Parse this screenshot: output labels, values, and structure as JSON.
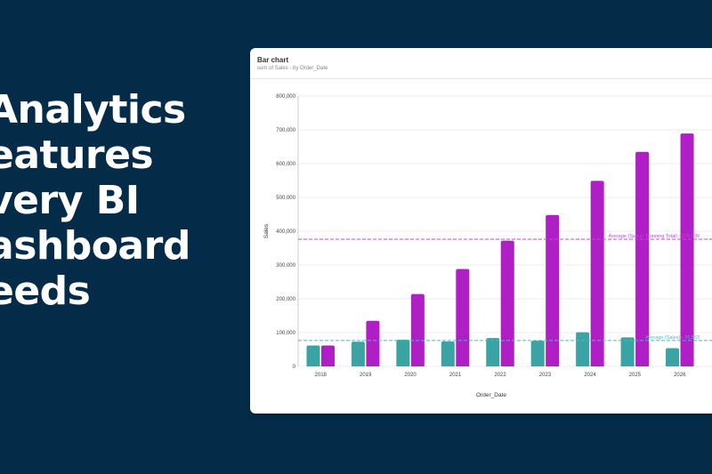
{
  "headline": {
    "lines": [
      "Analytics",
      "eatures",
      "very BI",
      "ashboard",
      "eeds"
    ]
  },
  "card": {
    "title": "Bar chart",
    "subtitle": "sum of Sales - by Order_Date"
  },
  "colors": {
    "background": "#042c48",
    "sales": "#3aa3a3",
    "running_total": "#b01ec6",
    "avg_sales_line": "#5ab4b4",
    "avg_running_line": "#c04ad4"
  },
  "chart_data": {
    "type": "bar",
    "xlabel": "Order_Date",
    "ylabel": "Sales",
    "ylim": [
      0,
      800000
    ],
    "yticks": [
      0,
      100000,
      200000,
      300000,
      400000,
      500000,
      600000,
      700000,
      800000
    ],
    "ytick_labels": [
      "0",
      "100,000",
      "200,000",
      "300,000",
      "400,000",
      "500,000",
      "600,000",
      "700,000",
      "800,000"
    ],
    "categories": [
      "2018",
      "2019",
      "2020",
      "2021",
      "2022",
      "2023",
      "2024",
      "2025",
      "2026"
    ],
    "series": [
      {
        "values": [
          62000,
          73000,
          79000,
          74000,
          84000,
          76000,
          101000,
          86000,
          54000
        ]
      },
      {
        "values": [
          62000,
          135000,
          214000,
          288000,
          372000,
          448000,
          549000,
          635000,
          689000
        ]
      }
    ],
    "grid": true,
    "annotations": [
      {
        "label": "Average (Sales - Running Total) - 376,299",
        "value": 376299
      },
      {
        "label": "Average (Sales) - 76,563",
        "value": 76563
      }
    ]
  }
}
